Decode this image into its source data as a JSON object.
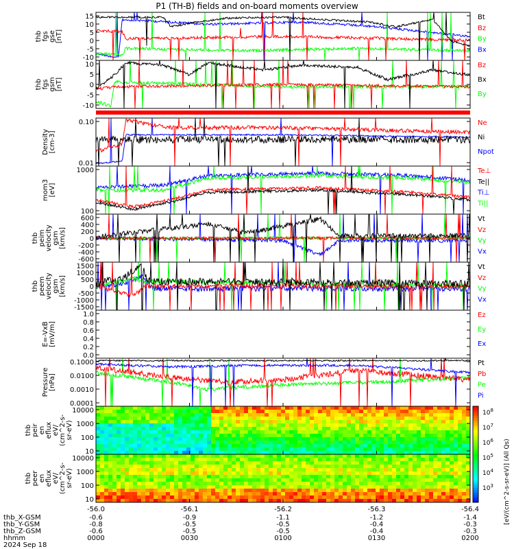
{
  "title": "P1 (TH-B) fields and on-board moments overview",
  "colors": {
    "black": "#000000",
    "red": "#ff0000",
    "green": "#00ff00",
    "blue": "#0000ff",
    "grid": "#000000"
  },
  "panels": [
    {
      "id": "fgs-gse",
      "ylabel": [
        "thb",
        "fgs",
        "gse",
        "[nT]"
      ],
      "yticks": [
        "15",
        "10",
        "5",
        "0",
        "-5",
        "-10"
      ],
      "legend": [
        {
          "text": "Bt",
          "color": "black"
        },
        {
          "text": "Bz",
          "color": "red"
        },
        {
          "text": "By",
          "color": "green"
        },
        {
          "text": "Bx",
          "color": "blue"
        }
      ]
    },
    {
      "id": "fgs-gsm",
      "ylabel": [
        "thb",
        "fgs",
        "gsm",
        "[nT]"
      ],
      "yticks": [
        "10",
        "5",
        "0",
        "-5",
        "-10"
      ],
      "legend": [
        {
          "text": "Bz",
          "color": "red"
        },
        {
          "text": "Bx",
          "color": "black"
        },
        {
          "text": "By",
          "color": "green"
        }
      ]
    },
    {
      "id": "density",
      "ylabel": [
        "Density",
        "[cm-3]"
      ],
      "yticks": [
        "0.10",
        "0.01"
      ],
      "legend": [
        {
          "text": "Ne",
          "color": "red"
        },
        {
          "text": "Ni",
          "color": "black"
        },
        {
          "text": "Npot",
          "color": "blue"
        }
      ]
    },
    {
      "id": "temperature",
      "ylabel": [
        "mom3",
        "[eV]"
      ],
      "yticks": [
        "1000",
        "100"
      ],
      "legend": [
        {
          "text": "Te⊥",
          "color": "red"
        },
        {
          "text": "Te||",
          "color": "black"
        },
        {
          "text": "Ti⊥",
          "color": "blue"
        },
        {
          "text": "Ti||",
          "color": "green"
        }
      ]
    },
    {
      "id": "ion-velocity",
      "ylabel": [
        "thb",
        "peim",
        "velocity",
        "gsm",
        "[km/s]"
      ],
      "yticks": [
        "600",
        "400",
        "200",
        "0",
        "-200",
        "-400",
        "-600"
      ],
      "legend": [
        {
          "text": "Vt",
          "color": "black"
        },
        {
          "text": "Vz",
          "color": "red"
        },
        {
          "text": "Vy",
          "color": "green"
        },
        {
          "text": "Vx",
          "color": "blue"
        }
      ]
    },
    {
      "id": "electron-velocity",
      "ylabel": [
        "thb",
        "peem",
        "velocity",
        "gsm",
        "[km/s]"
      ],
      "yticks": [
        "1500",
        "1000",
        "500",
        "0",
        "-500",
        "-1000",
        "-1500"
      ],
      "legend": [
        {
          "text": "Vt",
          "color": "black"
        },
        {
          "text": "Vz",
          "color": "red"
        },
        {
          "text": "Vy",
          "color": "green"
        },
        {
          "text": "Vx",
          "color": "blue"
        }
      ]
    },
    {
      "id": "efield",
      "ylabel": [
        "E=-VxB",
        "[mV/m]"
      ],
      "yticks": [
        "1.0",
        "0.8",
        "0.6",
        "0.4",
        "0.2",
        "0.0"
      ],
      "legend": [
        {
          "text": "Ez",
          "color": "red"
        },
        {
          "text": "Ey",
          "color": "green"
        },
        {
          "text": "Ex",
          "color": "blue"
        }
      ]
    },
    {
      "id": "pressure",
      "ylabel": [
        "Pressure",
        "[nPa]"
      ],
      "yticks": [
        "0.1000",
        "0.0100",
        "0.0010",
        "0.0001"
      ],
      "legend": [
        {
          "text": "Pt",
          "color": "black"
        },
        {
          "text": "Pb",
          "color": "red"
        },
        {
          "text": "Pe",
          "color": "green"
        },
        {
          "text": "Pi",
          "color": "blue"
        }
      ]
    },
    {
      "id": "ion-spectrogram",
      "ylabel": [
        "thb",
        "peir",
        "en",
        "eflux",
        "eV/",
        "(cm^2-s-",
        "sr-eV)"
      ],
      "yticks": [
        "10000",
        "1000",
        "100",
        "10"
      ],
      "legend": []
    },
    {
      "id": "electron-spectrogram",
      "ylabel": [
        "thb",
        "peer",
        "en",
        "eflux",
        "eV/",
        "(cm^2-s-",
        "sr-eV)"
      ],
      "yticks": [
        "10000",
        "1000",
        "100",
        "10"
      ],
      "legend": []
    }
  ],
  "colorbar": {
    "ticks": [
      "10^8",
      "10^7",
      "10^6",
      "10^5",
      "10^4",
      "10^3"
    ],
    "label": "[eV/(cm^2-s-sr-eV)] (All Qs)"
  },
  "xaxis": {
    "ticks": [
      "-56.0",
      "-56.1",
      "-56.2",
      "-56.3",
      "-56.4"
    ],
    "rows": [
      {
        "label": "thb_X-GSM",
        "values": [
          "-0.6",
          "-0.9",
          "-1.1",
          "-1.2",
          "-1.4"
        ]
      },
      {
        "label": "thb_Y-GSM",
        "values": [
          "-0.8",
          "-0.5",
          "-0.5",
          "-0.4",
          "-0.3"
        ]
      },
      {
        "label": "thb_Z-GSM",
        "values": [
          "-0.6",
          "-0.5",
          "-0.5",
          "-0.4",
          "-0.3"
        ]
      },
      {
        "label": "hhmm",
        "values": [
          "0000",
          "0030",
          "0100",
          "0130",
          "0200"
        ]
      }
    ],
    "date": "2024 Sep 18"
  },
  "chart_data": [
    {
      "type": "line",
      "title": "P1 (TH-B) fields and on-board moments overview",
      "ylabel": "thb fgs gse [nT]",
      "ylim": [
        -15,
        15
      ],
      "x": [
        "0000",
        "0030",
        "0100",
        "0130",
        "0200"
      ],
      "series": [
        {
          "name": "Bt",
          "values": [
            13,
            11,
            14,
            14,
            4
          ]
        },
        {
          "name": "Bz",
          "values": [
            4,
            0,
            2,
            1,
            -1
          ]
        },
        {
          "name": "By",
          "values": [
            -12,
            -5,
            -3,
            -2,
            -4
          ]
        },
        {
          "name": "Bx",
          "values": [
            -5,
            8,
            10,
            10,
            2
          ]
        }
      ]
    },
    {
      "type": "line",
      "ylabel": "Density [cm-3]",
      "ylim": [
        0.003,
        0.4
      ],
      "x": [
        "0000",
        "0030",
        "0100",
        "0130",
        "0200"
      ],
      "series": [
        {
          "name": "Ne",
          "values": [
            0.03,
            0.15,
            0.13,
            0.12,
            0.1
          ]
        },
        {
          "name": "Ni",
          "values": [
            0.07,
            0.08,
            0.09,
            0.08,
            0.07
          ]
        },
        {
          "name": "Npot",
          "values": [
            0.004,
            0.09,
            0.08,
            0.07,
            0.06
          ]
        }
      ]
    },
    {
      "type": "line",
      "ylabel": "Pressure [nPa]",
      "ylim": [
        0.0001,
        0.2
      ],
      "x": [
        "0000",
        "0030",
        "0100",
        "0130",
        "0200"
      ],
      "series": [
        {
          "name": "Pt",
          "values": [
            0.09,
            0.1,
            0.11,
            0.1,
            0.08
          ]
        },
        {
          "name": "Pb",
          "values": [
            0.05,
            0.01,
            0.01,
            0.02,
            0.02
          ]
        },
        {
          "name": "Pe",
          "values": [
            0.02,
            0.003,
            0.004,
            0.005,
            0.01
          ]
        },
        {
          "name": "Pi",
          "values": [
            0.07,
            0.06,
            0.05,
            0.05,
            0.03
          ]
        }
      ]
    }
  ]
}
